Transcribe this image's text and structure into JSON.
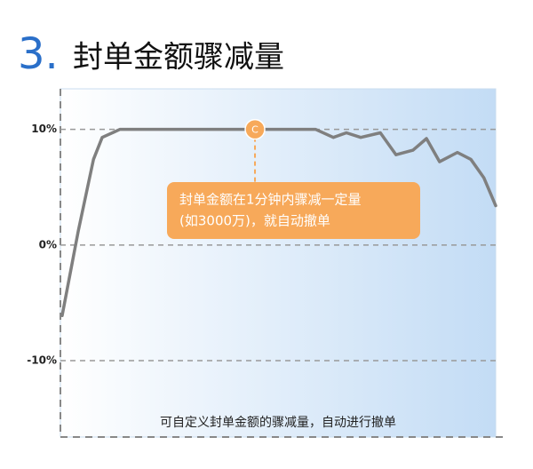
{
  "chart_data": {
    "type": "line",
    "title_number": "3.",
    "title": "封单金额骤减量",
    "x": [
      0.4,
      4.1,
      7.6,
      9.6,
      13.7,
      26.9,
      44.7,
      58.6,
      62.7,
      65.7,
      69.0,
      73.5,
      77.1,
      81.0,
      84.1,
      87.1,
      91.2,
      94.3,
      97.3,
      100
    ],
    "series": [
      {
        "color": "#7f7f7f",
        "values": [
          -6.1,
          1.2,
          7.4,
          9.3,
          10,
          10,
          10,
          10,
          9.3,
          9.7,
          9.3,
          9.7,
          7.8,
          8.2,
          9.2,
          7.2,
          8.0,
          7.4,
          5.8,
          3.4
        ]
      }
    ],
    "xlim": [
      0,
      100
    ],
    "ylim": [
      -16.6,
      13.5
    ],
    "yticks": [
      {
        "value": 10,
        "label": "10%"
      },
      {
        "value": 0,
        "label": "0%"
      },
      {
        "value": -10,
        "label": "-10%"
      }
    ],
    "grid": true,
    "annotation": {
      "label": "C",
      "x": 44.7,
      "y": 10,
      "color": "#f7a95a",
      "text": [
        "封单金额在1分钟内骤减一定量",
        "(如3000万)，就自动撤单"
      ]
    },
    "caption": "可自定义封单金额的骤减量，自动进行撤单"
  }
}
